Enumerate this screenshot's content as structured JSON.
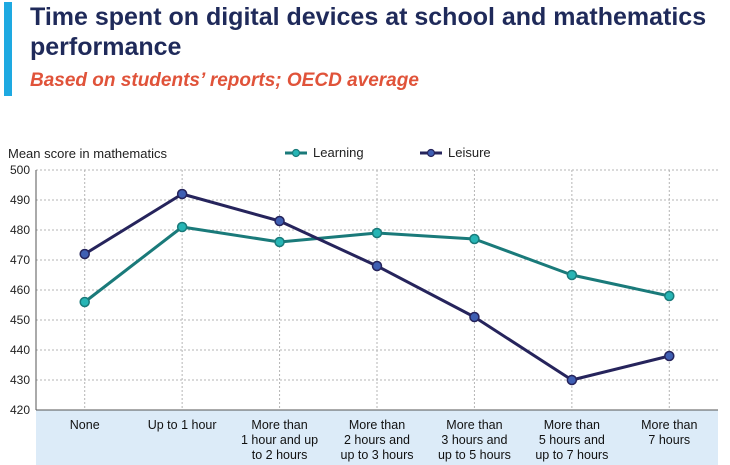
{
  "title": "Time spent on digital devices at school and mathematics performance",
  "subtitle": "Based on students’ reports; OECD average",
  "colors": {
    "accent": "#1ea9e1",
    "title": "#1f2a5a",
    "subtitle": "#e0533a",
    "learning": "#1a7a7a",
    "learning_marker": "#27b5b5",
    "leisure": "#26245c",
    "leisure_marker": "#3f5fb3",
    "axis_band": "#dcebf8"
  },
  "chart_data": {
    "type": "line",
    "ylabel": "Mean score in mathematics",
    "ylim": [
      420,
      500
    ],
    "yticks": [
      420,
      430,
      440,
      450,
      460,
      470,
      480,
      490,
      500
    ],
    "grid": true,
    "legend_position": "top-center",
    "categories": [
      [
        "None"
      ],
      [
        "Up to 1 hour"
      ],
      [
        "More than",
        "1 hour and up",
        "to 2 hours"
      ],
      [
        "More than",
        "2 hours and",
        "up to 3 hours"
      ],
      [
        "More than",
        "3 hours and",
        "up to 5 hours"
      ],
      [
        "More than",
        "5 hours and",
        "up to 7 hours"
      ],
      [
        "More than",
        "7 hours"
      ]
    ],
    "series": [
      {
        "name": "Learning",
        "values": [
          456,
          481,
          476,
          479,
          477,
          465,
          458
        ]
      },
      {
        "name": "Leisure",
        "values": [
          472,
          492,
          483,
          468,
          451,
          430,
          438
        ]
      }
    ]
  }
}
